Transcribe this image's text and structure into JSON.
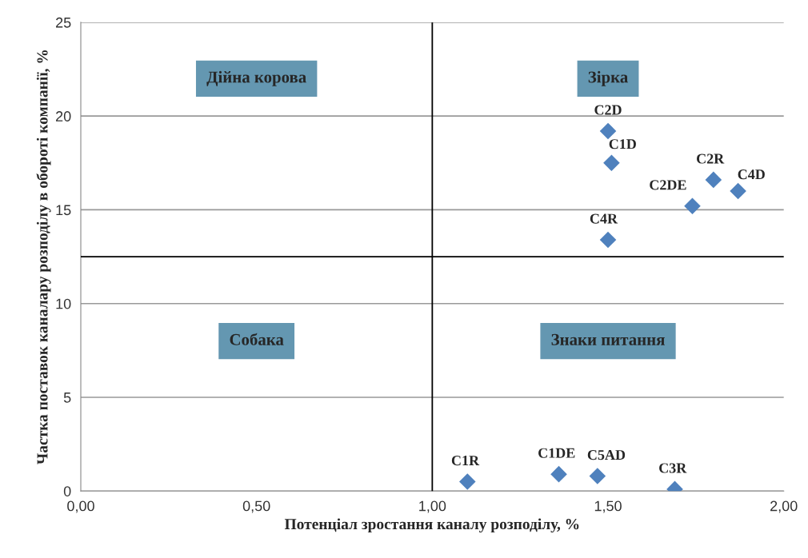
{
  "chart_data": {
    "type": "scatter",
    "xlabel": "Потенціал зростання каналу розподілу, %",
    "ylabel": "Частка поставок каналару розподілу в обороті компанії, %",
    "x": [
      1.5,
      1.51,
      1.8,
      1.87,
      1.74,
      1.5,
      1.1,
      1.36,
      1.47,
      1.69
    ],
    "series": [
      {
        "color": "#4f81bd",
        "values": [
          19.2,
          17.5,
          16.6,
          16.0,
          15.2,
          13.4,
          0.5,
          0.9,
          0.8,
          0.1
        ]
      }
    ],
    "xlim": [
      0,
      2
    ],
    "ylim": [
      0,
      25
    ],
    "xticks": [
      {
        "value": 0,
        "label": "0,00"
      },
      {
        "value": 0.5,
        "label": "0,50"
      },
      {
        "value": 1,
        "label": "1,00"
      },
      {
        "value": 1.5,
        "label": "1,50"
      },
      {
        "value": 2,
        "label": "2,00"
      }
    ],
    "yticks": [
      0,
      5,
      10,
      15,
      20,
      25
    ],
    "grid": "y",
    "marker": "diamond",
    "legend": false,
    "ref_lines": [
      {
        "axis": "x",
        "value": 1,
        "color": "#000000"
      },
      {
        "axis": "y",
        "value": 12.5,
        "color": "#000000"
      }
    ],
    "annotations": [
      "Дійна корова",
      "Зірка",
      "Собака",
      "Знаки питання",
      {
        "text": "C2D",
        "x": 1.5,
        "y": 19.2
      },
      {
        "text": "C1D",
        "x": 1.51,
        "y": 17.5
      },
      {
        "text": "C2R",
        "x": 1.8,
        "y": 16.6
      },
      {
        "text": "C4D",
        "x": 1.87,
        "y": 16.0
      },
      {
        "text": "C2DE",
        "x": 1.74,
        "y": 15.2
      },
      {
        "text": "C4R",
        "x": 1.5,
        "y": 13.4
      },
      {
        "text": "C1R",
        "x": 1.1,
        "y": 0.5
      },
      {
        "text": "C1DE",
        "x": 1.36,
        "y": 0.9
      },
      {
        "text": "C5AD",
        "x": 1.47,
        "y": 0.8
      },
      {
        "text": "C3R",
        "x": 1.69,
        "y": 0.1
      }
    ]
  }
}
